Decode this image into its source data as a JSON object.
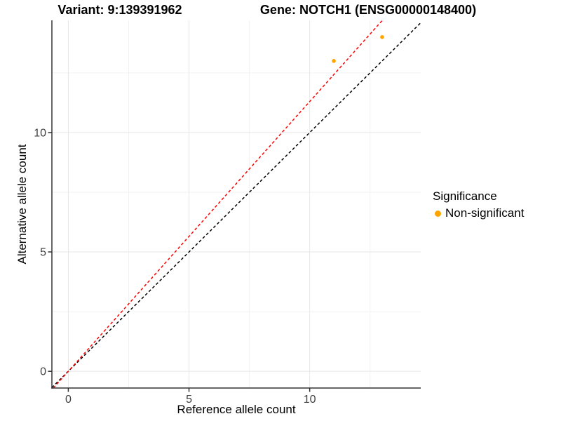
{
  "chart_data": {
    "type": "scatter",
    "titles": [
      "Variant: 9:139391962",
      "Gene: NOTCH1 (ENSG00000148400)"
    ],
    "xlabel": "Reference allele count",
    "ylabel": "Alternative allele count",
    "xlim": [
      -0.68,
      14.6
    ],
    "ylim": [
      -0.7,
      14.7
    ],
    "x_major_ticks": [
      0,
      5,
      10
    ],
    "x_minor_ticks": [
      2.5,
      7.5,
      12.5
    ],
    "y_major_ticks": [
      0,
      5,
      10
    ],
    "y_minor_ticks": [
      2.5,
      7.5,
      12.5
    ],
    "grid": "major+minor on white background",
    "legend_position": "right",
    "series": [
      {
        "name": "Non-significant",
        "color": "#FFA500",
        "points": [
          {
            "x": 11,
            "y": 13
          },
          {
            "x": 13,
            "y": 14
          }
        ]
      }
    ],
    "reference_lines": [
      {
        "name": "identity-line",
        "slope": 1,
        "intercept": 0,
        "color": "#000000",
        "style": "dashed"
      },
      {
        "name": "fitted-line",
        "slope": 1.13,
        "intercept": 0,
        "color": "#FF0000",
        "style": "dashed"
      }
    ],
    "legend": {
      "title": "Significance",
      "items": [
        {
          "label": "Non-significant",
          "color": "#FFA500"
        }
      ]
    }
  }
}
